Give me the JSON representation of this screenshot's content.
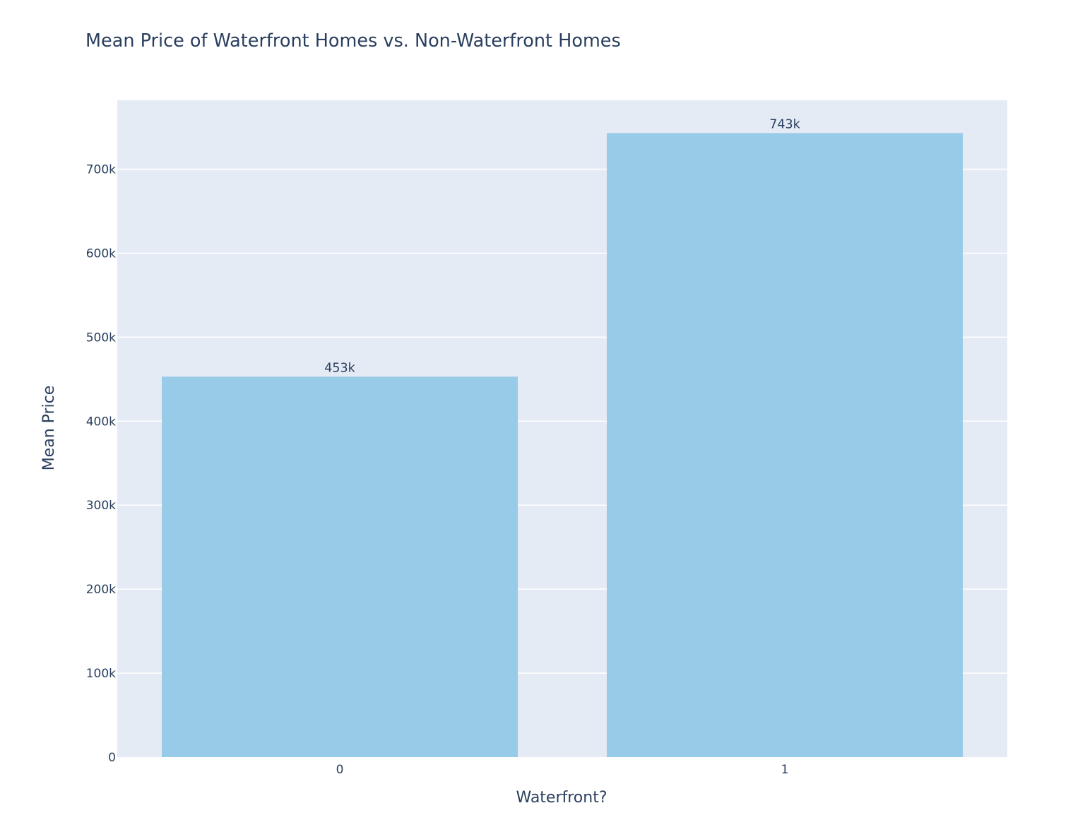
{
  "chart_data": {
    "type": "bar",
    "title": "Mean Price of Waterfront Homes vs. Non-Waterfront Homes",
    "xlabel": "Waterfront?",
    "ylabel": "Mean Price",
    "categories": [
      "0",
      "1"
    ],
    "values": [
      453000,
      743000
    ],
    "data_labels": [
      "453k",
      "743k"
    ],
    "ylim": [
      0,
      782000
    ],
    "yticks": [
      0,
      100000,
      200000,
      300000,
      400000,
      500000,
      600000,
      700000
    ],
    "ytick_labels": [
      "0",
      "100k",
      "200k",
      "300k",
      "400k",
      "500k",
      "600k",
      "700k"
    ],
    "grid": true,
    "colors": {
      "bar": "#97cbe7",
      "plot_background": "#e5ebf5",
      "grid": "#ffffff",
      "text": "#2a3f5f"
    }
  }
}
